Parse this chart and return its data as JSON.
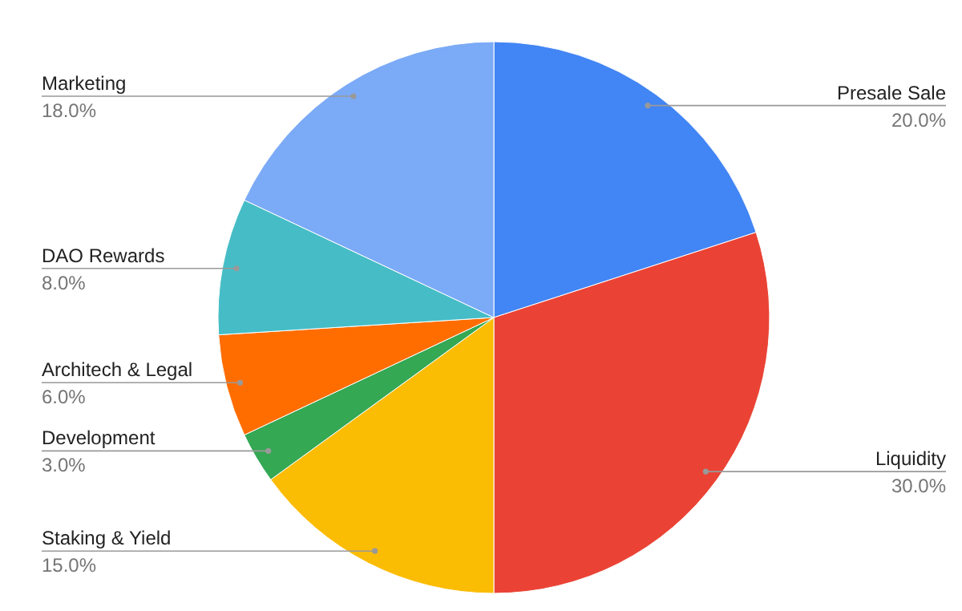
{
  "chart_data": {
    "type": "pie",
    "categories": [
      "Presale Sale",
      "Liquidity",
      "Staking & Yield",
      "Development",
      "Architech & Legal",
      "DAO Rewards",
      "Marketing"
    ],
    "values": [
      20,
      30,
      15,
      3,
      6,
      8,
      18
    ],
    "value_labels": [
      "20.0%",
      "30.0%",
      "15.0%",
      "3.0%",
      "6.0%",
      "8.0%",
      "18.0%"
    ],
    "colors": [
      "#4285f4",
      "#ea4335",
      "#fbbc04",
      "#34a853",
      "#ff6d01",
      "#46bdc6",
      "#7baaf7"
    ],
    "legend": false
  }
}
